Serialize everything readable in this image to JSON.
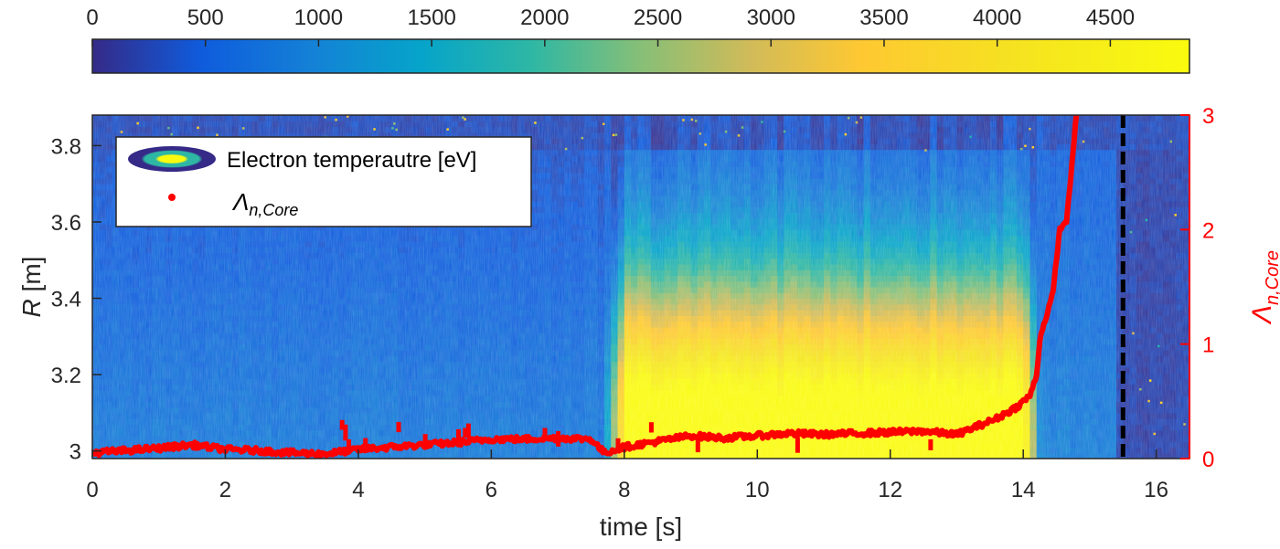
{
  "chart_data": {
    "type": "heatmap",
    "title": "",
    "xlabel": "time [s]",
    "ylabel_main": "R",
    "ylabel_unit": " [m]",
    "y2label_main": "Λ",
    "y2label_sub": "n,Core",
    "xlim": [
      0,
      16.5
    ],
    "ylim": [
      2.98,
      3.88
    ],
    "y2lim": [
      0,
      3
    ],
    "x_ticks": [
      {
        "value": 0,
        "label": "0"
      },
      {
        "value": 2,
        "label": "2"
      },
      {
        "value": 4,
        "label": "4"
      },
      {
        "value": 6,
        "label": "6"
      },
      {
        "value": 8,
        "label": "8"
      },
      {
        "value": 10,
        "label": "10"
      },
      {
        "value": 12,
        "label": "12"
      },
      {
        "value": 14,
        "label": "14"
      },
      {
        "value": 16,
        "label": "16"
      }
    ],
    "y_ticks": [
      {
        "value": 3.0,
        "label": "3"
      },
      {
        "value": 3.2,
        "label": "3.2"
      },
      {
        "value": 3.4,
        "label": "3.4"
      },
      {
        "value": 3.6,
        "label": "3.6"
      },
      {
        "value": 3.8,
        "label": "3.8"
      }
    ],
    "y2_ticks": [
      {
        "value": 0,
        "label": "0"
      },
      {
        "value": 1,
        "label": "1"
      },
      {
        "value": 2,
        "label": "2"
      },
      {
        "value": 3,
        "label": "3"
      }
    ],
    "colorbar": {
      "range": [
        0,
        4850
      ],
      "ticks": [
        {
          "value": 0,
          "label": "0"
        },
        {
          "value": 500,
          "label": "500"
        },
        {
          "value": 1000,
          "label": "1000"
        },
        {
          "value": 1500,
          "label": "1500"
        },
        {
          "value": 2000,
          "label": "2000"
        },
        {
          "value": 2500,
          "label": "2500"
        },
        {
          "value": 3000,
          "label": "3000"
        },
        {
          "value": 3500,
          "label": "3500"
        },
        {
          "value": 4000,
          "label": "4000"
        },
        {
          "value": 4500,
          "label": "4500"
        }
      ],
      "colormap": "parula"
    },
    "heatmap_description": {
      "times": [
        0,
        1,
        2,
        3,
        4,
        5,
        6,
        7,
        7.6,
        8,
        9,
        10,
        11,
        12,
        13,
        13.8,
        14.2,
        15.5,
        16.5
      ],
      "radii": [
        2.98,
        3.1,
        3.2,
        3.3,
        3.4,
        3.5,
        3.6,
        3.7,
        3.78,
        3.88
      ],
      "edge_temperature_ev": 300
    },
    "legend": {
      "position": "top-left",
      "entries": [
        {
          "label": "Electron temperautre [eV]",
          "marker": "ellipse-contour"
        },
        {
          "label_main": "Λ",
          "label_sub": "n,Core",
          "marker": "red-dot"
        }
      ]
    },
    "series": [
      {
        "name": "Λn,Core",
        "color": "#ff0000",
        "axis": "right",
        "x": [
          0.0,
          0.5,
          1.0,
          1.5,
          2.0,
          2.5,
          3.0,
          3.5,
          4.0,
          4.5,
          5.0,
          5.5,
          6.0,
          6.5,
          7.0,
          7.5,
          7.7,
          8.0,
          8.5,
          9.0,
          9.5,
          10.0,
          10.5,
          11.0,
          11.5,
          12.0,
          12.5,
          13.0,
          13.3,
          13.6,
          13.9,
          14.1,
          14.2,
          14.25,
          14.35,
          14.45,
          14.5,
          14.55,
          14.65,
          14.7,
          14.75,
          14.8
        ],
        "y": [
          0.05,
          0.07,
          0.09,
          0.12,
          0.08,
          0.07,
          0.05,
          0.04,
          0.08,
          0.1,
          0.12,
          0.14,
          0.17,
          0.17,
          0.18,
          0.17,
          0.05,
          0.1,
          0.15,
          0.2,
          0.18,
          0.2,
          0.22,
          0.21,
          0.22,
          0.23,
          0.24,
          0.21,
          0.28,
          0.35,
          0.45,
          0.55,
          0.72,
          1.05,
          1.25,
          1.45,
          1.75,
          2.0,
          2.08,
          2.35,
          2.7,
          3.0
        ]
      }
    ],
    "annotations": [
      {
        "type": "vertical-dashed-line",
        "x": 15.5,
        "color": "#000000"
      }
    ]
  }
}
